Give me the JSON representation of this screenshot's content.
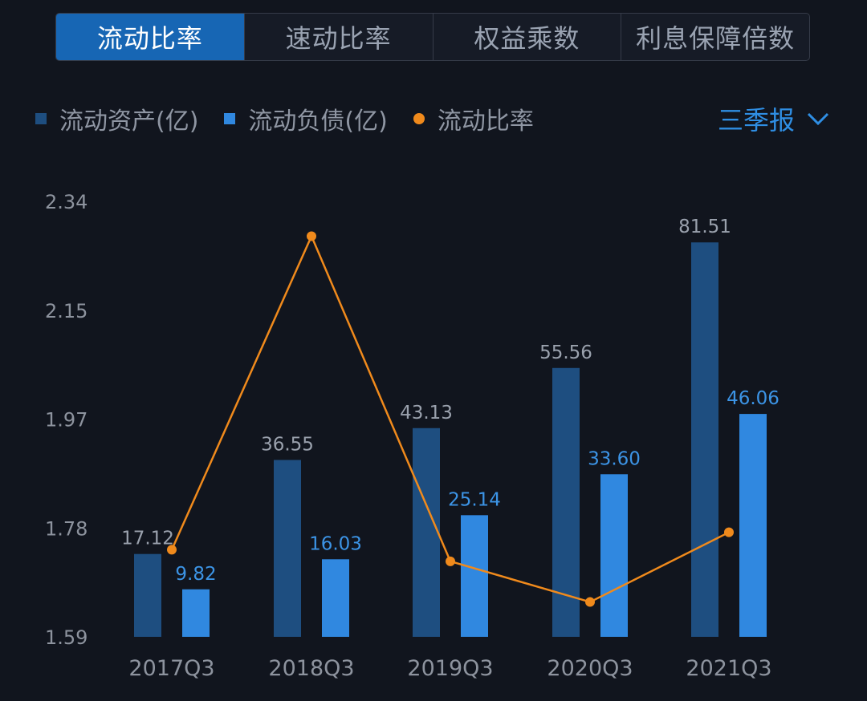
{
  "tabs": [
    {
      "label": "流动比率",
      "active": true
    },
    {
      "label": "速动比率",
      "active": false
    },
    {
      "label": "权益乘数",
      "active": false
    },
    {
      "label": "利息保障倍数",
      "active": false
    }
  ],
  "legend": {
    "assets": "流动资产(亿)",
    "liabilities": "流动负债(亿)",
    "ratio": "流动比率"
  },
  "period_selector": {
    "label": "三季报",
    "icon": "chevron-down-icon"
  },
  "colors": {
    "assets": "#1e4e80",
    "liabilities": "#3088e0",
    "ratio": "#f08a1c",
    "active_tab": "#1766b4",
    "background": "#11151e"
  },
  "chart_data": {
    "type": "bar",
    "categories": [
      "2017Q3",
      "2018Q3",
      "2019Q3",
      "2020Q3",
      "2021Q3"
    ],
    "series": [
      {
        "name": "流动资产(亿)",
        "type": "bar",
        "values": [
          17.12,
          36.55,
          43.13,
          55.56,
          81.51
        ],
        "labels": [
          "17.12",
          "36.55",
          "43.13",
          "55.56",
          "81.51"
        ]
      },
      {
        "name": "流动负债(亿)",
        "type": "bar",
        "values": [
          9.82,
          16.03,
          25.14,
          33.6,
          46.06
        ],
        "labels": [
          "9.82",
          "16.03",
          "25.14",
          "33.60",
          "46.06"
        ]
      },
      {
        "name": "流动比率",
        "type": "line",
        "values": [
          1.74,
          2.28,
          1.72,
          1.65,
          1.77
        ]
      }
    ],
    "y_ticks": [
      "2.34",
      "2.15",
      "1.97",
      "1.78",
      "1.59"
    ],
    "ylim": [
      1.59,
      2.34
    ],
    "bar_ylim": [
      0,
      90
    ],
    "grid": false,
    "legend_position": "top-left"
  }
}
